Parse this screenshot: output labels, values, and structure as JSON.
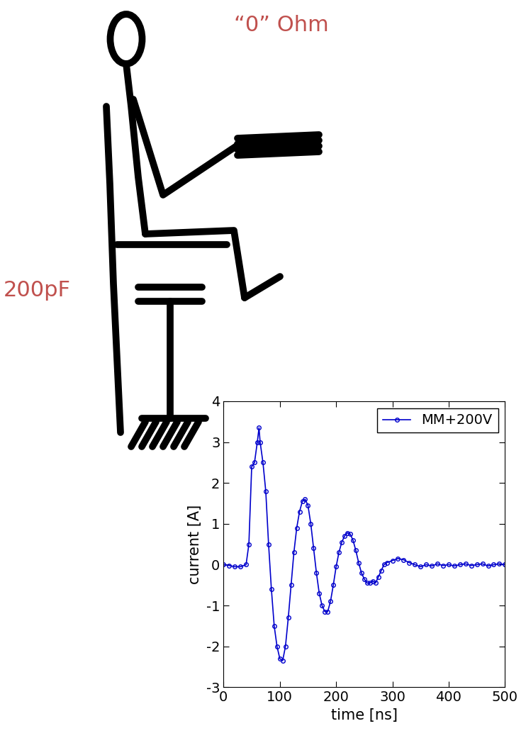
{
  "figure_labels": {
    "resistance": "“0” Ohm",
    "capacitance": "200pF"
  },
  "chart_data": {
    "type": "line",
    "x_label": "time [ns]",
    "y_label": "current [A]",
    "xlim": [
      0,
      500
    ],
    "xticks": [
      0,
      100,
      200,
      300,
      400,
      500
    ],
    "ylim": [
      -3,
      4
    ],
    "yticks": [
      -3,
      -2,
      -1,
      0,
      1,
      2,
      3,
      4
    ],
    "legend": "upper right",
    "series": [
      {
        "name": "MM+200V",
        "color": "#0000cc",
        "marker": "o",
        "line_style": "solid",
        "x": [
          0,
          10,
          20,
          30,
          40,
          45,
          50,
          55,
          60,
          63,
          65,
          70,
          75,
          80,
          85,
          90,
          95,
          100,
          105,
          110,
          115,
          120,
          125,
          130,
          135,
          140,
          145,
          150,
          155,
          160,
          165,
          170,
          175,
          180,
          185,
          190,
          195,
          200,
          205,
          210,
          215,
          220,
          225,
          230,
          235,
          240,
          245,
          250,
          255,
          260,
          265,
          270,
          275,
          280,
          285,
          290,
          300,
          310,
          320,
          330,
          340,
          350,
          360,
          370,
          380,
          390,
          400,
          410,
          420,
          430,
          440,
          450,
          460,
          470,
          480,
          490,
          500
        ],
        "values": [
          0.0,
          -0.02,
          -0.05,
          -0.05,
          0.0,
          0.5,
          2.4,
          2.5,
          3.0,
          3.35,
          3.0,
          2.5,
          1.8,
          0.5,
          -0.6,
          -1.5,
          -2.0,
          -2.3,
          -2.35,
          -2.0,
          -1.3,
          -0.5,
          0.3,
          0.9,
          1.3,
          1.55,
          1.6,
          1.45,
          1.0,
          0.4,
          -0.2,
          -0.7,
          -1.0,
          -1.15,
          -1.15,
          -0.9,
          -0.5,
          -0.05,
          0.3,
          0.55,
          0.7,
          0.78,
          0.75,
          0.6,
          0.35,
          0.05,
          -0.2,
          -0.35,
          -0.45,
          -0.45,
          -0.4,
          -0.45,
          -0.3,
          -0.15,
          0.0,
          0.05,
          0.1,
          0.15,
          0.12,
          0.05,
          0.0,
          -0.05,
          0.0,
          -0.03,
          0.02,
          -0.02,
          0.0,
          -0.03,
          0.0,
          0.02,
          -0.02,
          0.0,
          0.02,
          -0.03,
          0.0,
          0.02,
          0.0
        ]
      }
    ]
  }
}
